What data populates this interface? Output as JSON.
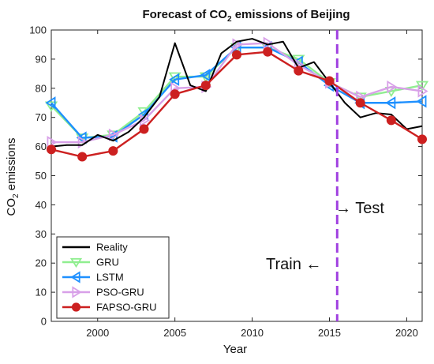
{
  "chart_data": {
    "type": "line",
    "title": "Forecast of CO",
    "title_sub": "2",
    "title_suffix": " emissions of Beijing",
    "xlabel": "Year",
    "ylabel": "CO",
    "ylabel_sub": "2",
    "ylabel_suffix": " emissions",
    "xlim": [
      1997,
      2021
    ],
    "ylim": [
      0,
      100
    ],
    "xticks": [
      2000,
      2005,
      2010,
      2015,
      2020
    ],
    "yticks": [
      0,
      10,
      20,
      30,
      40,
      50,
      60,
      70,
      80,
      90,
      100
    ],
    "grid": false,
    "legend_position": "bottom-left",
    "split_year": 2015.5,
    "annotations": {
      "train": "Train ←",
      "test": "→ Test"
    },
    "series": [
      {
        "name": "Reality",
        "color": "#000000",
        "marker": "none",
        "x": [
          1997,
          1998,
          1999,
          2000,
          2001,
          2002,
          2003,
          2004,
          2005,
          2006,
          2007,
          2008,
          2009,
          2010,
          2011,
          2012,
          2013,
          2014,
          2015,
          2016,
          2017,
          2018,
          2019,
          2020,
          2021
        ],
        "y": [
          60,
          60.5,
          60.5,
          64,
          62,
          65,
          70,
          77,
          95.5,
          81,
          79,
          92,
          96,
          97,
          95,
          96,
          87,
          89,
          82,
          75,
          70,
          71.5,
          71,
          66,
          67
        ]
      },
      {
        "name": "GRU",
        "color": "#90ee90",
        "marker": "triangle-down",
        "x": [
          1997,
          1999,
          2001,
          2003,
          2005,
          2007,
          2009,
          2011,
          2013,
          2015,
          2017,
          2019,
          2021
        ],
        "y": [
          74,
          63,
          64,
          72,
          84,
          84,
          94,
          94,
          90,
          82,
          77,
          79,
          81
        ]
      },
      {
        "name": "LSTM",
        "color": "#1e90ff",
        "marker": "triangle-left",
        "x": [
          1997,
          1999,
          2001,
          2003,
          2005,
          2007,
          2009,
          2011,
          2013,
          2015,
          2017,
          2019,
          2021
        ],
        "y": [
          75,
          63,
          63.5,
          71,
          83,
          84.5,
          94,
          94,
          89,
          81,
          75,
          75,
          75.5
        ]
      },
      {
        "name": "PSO-GRU",
        "color": "#d8a0e8",
        "marker": "triangle-right",
        "x": [
          1997,
          1999,
          2001,
          2003,
          2005,
          2007,
          2009,
          2011,
          2013,
          2015,
          2017,
          2019,
          2021
        ],
        "y": [
          61.5,
          61.5,
          64,
          69,
          80,
          80.5,
          95,
          95.5,
          88,
          82,
          77,
          80.5,
          79
        ]
      },
      {
        "name": "FAPSO-GRU",
        "color": "#cc2020",
        "marker": "circle",
        "x": [
          1997,
          1999,
          2001,
          2003,
          2005,
          2007,
          2009,
          2011,
          2013,
          2015,
          2017,
          2019,
          2021
        ],
        "y": [
          59,
          56.5,
          58.5,
          66,
          78,
          81,
          91.5,
          92.5,
          86,
          82.5,
          75,
          69,
          62.5
        ]
      }
    ]
  }
}
